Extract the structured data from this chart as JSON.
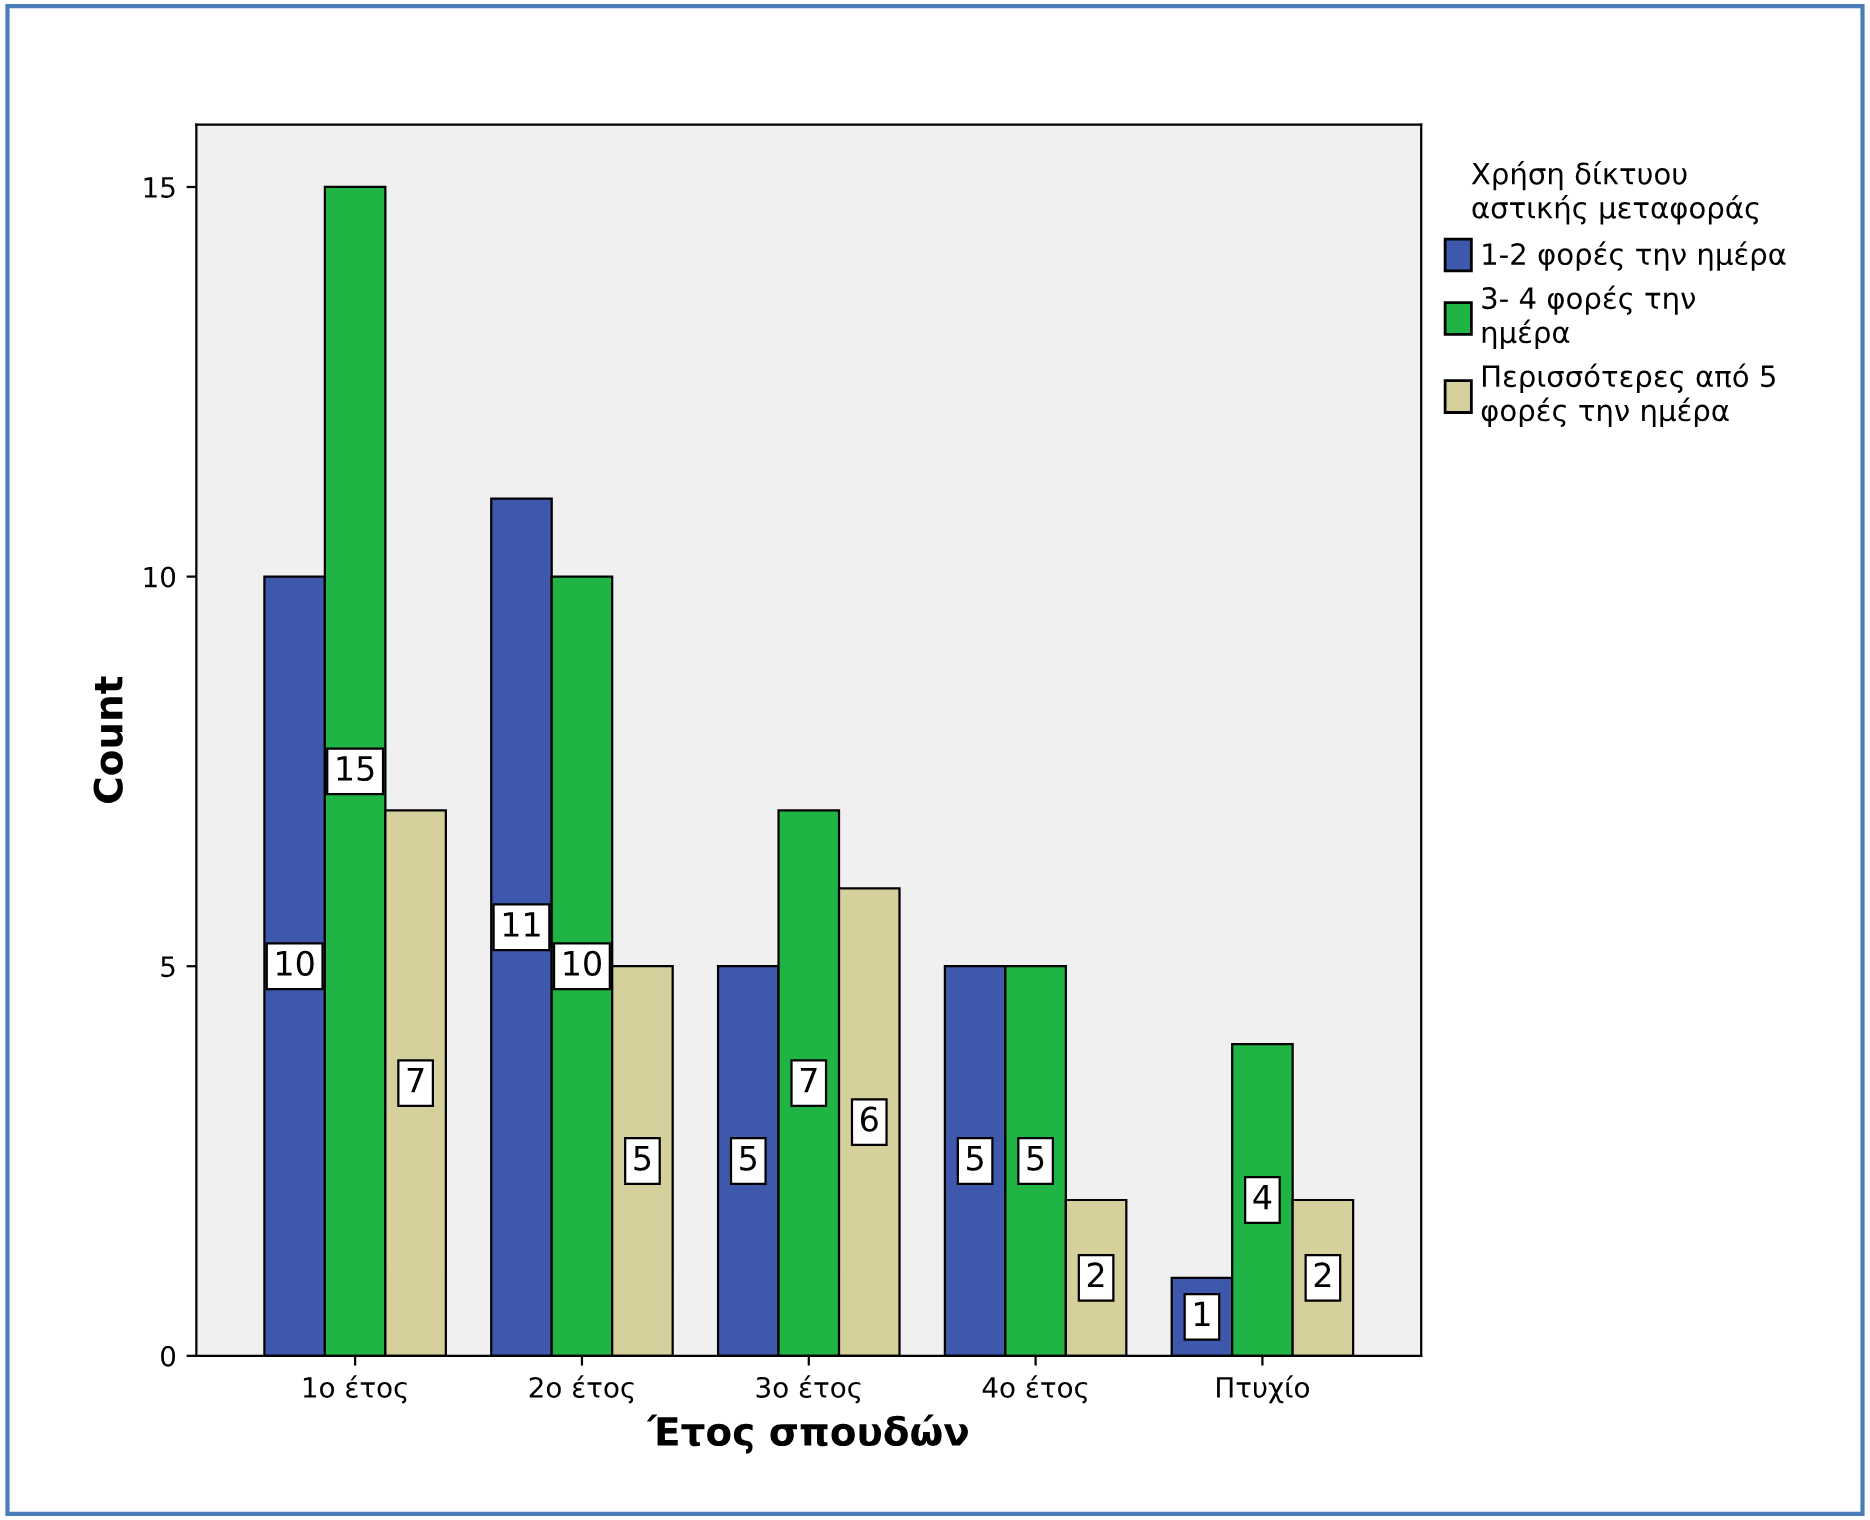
{
  "chart_data": {
    "type": "bar",
    "xlabel": "Έτος σπουδών",
    "ylabel": "Count",
    "legend_title": "Χρήση δίκτυου\nαστικής μεταφοράς",
    "categories": [
      "1ο έτος",
      "2ο έτος",
      "3ο έτος",
      "4ο έτος",
      "Πτυχίο"
    ],
    "series": [
      {
        "name": "1-2 φορές την ημέρα",
        "color": "#3e58ac",
        "values": [
          10,
          11,
          5,
          5,
          1
        ]
      },
      {
        "name": "3- 4 φορές την\nημέρα",
        "color": "#1fb443",
        "values": [
          15,
          10,
          7,
          5,
          4
        ]
      },
      {
        "name": "Περισσότερες από 5\nφορές την ημέρα",
        "color": "#d5d09c",
        "values": [
          7,
          5,
          6,
          2,
          2
        ]
      }
    ],
    "ylim": [
      0,
      15.8
    ],
    "yticks": [
      0,
      5,
      10,
      15
    ],
    "grid": false,
    "legend": "right",
    "data_labels": true
  }
}
